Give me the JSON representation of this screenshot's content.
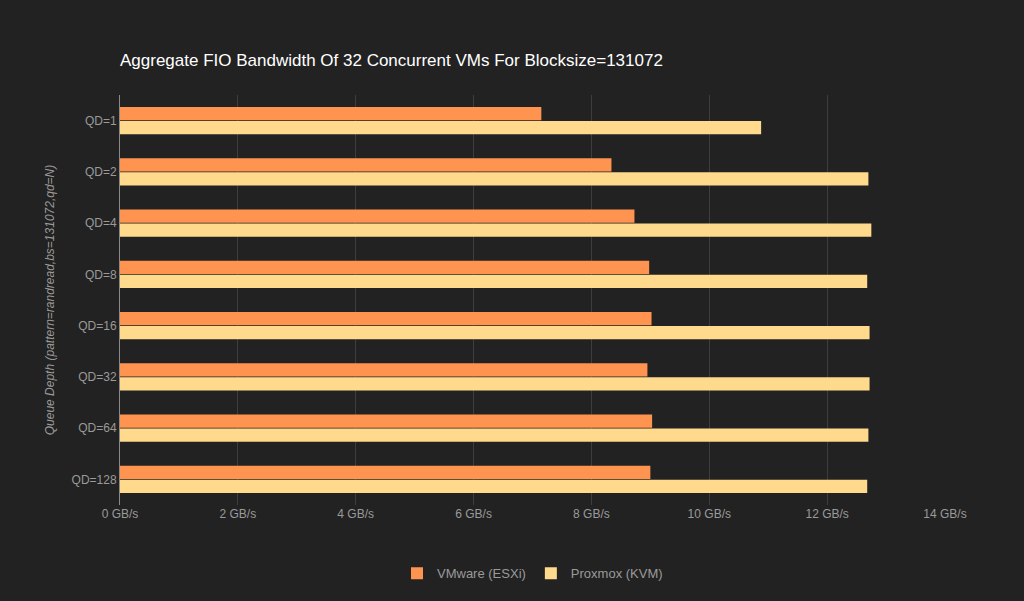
{
  "chart_data": {
    "type": "bar",
    "orientation": "horizontal",
    "title": "Aggregate FIO Bandwidth Of 32 Concurrent VMs For Blocksize=131072",
    "y_label": "Queue Depth (pattern=randread,bs=131072,qd=N)",
    "categories": [
      "QD=1",
      "QD=2",
      "QD=4",
      "QD=8",
      "QD=16",
      "QD=32",
      "QD=64",
      "QD=128"
    ],
    "series": [
      {
        "name": "VMware (ESXi)",
        "color": "#ff9350",
        "values": [
          7.15,
          8.34,
          8.73,
          8.98,
          9.02,
          8.95,
          9.03,
          9.0
        ]
      },
      {
        "name": "Proxmox (KVM)",
        "color": "#ffd98c",
        "values": [
          10.88,
          12.7,
          12.75,
          12.68,
          12.72,
          12.72,
          12.7,
          12.68
        ]
      }
    ],
    "xlim": [
      0,
      14
    ],
    "xticks": [
      {
        "value": 0,
        "label": "0 GB/s"
      },
      {
        "value": 2,
        "label": "2 GB/s"
      },
      {
        "value": 4,
        "label": "4 GB/s"
      },
      {
        "value": 6,
        "label": "6 GB/s"
      },
      {
        "value": 8,
        "label": "8 GB/s"
      },
      {
        "value": 10,
        "label": "10 GB/s"
      },
      {
        "value": 12,
        "label": "12 GB/s"
      },
      {
        "value": 14,
        "label": "14 GB/s"
      }
    ],
    "grid": true,
    "legend": "bottom"
  }
}
